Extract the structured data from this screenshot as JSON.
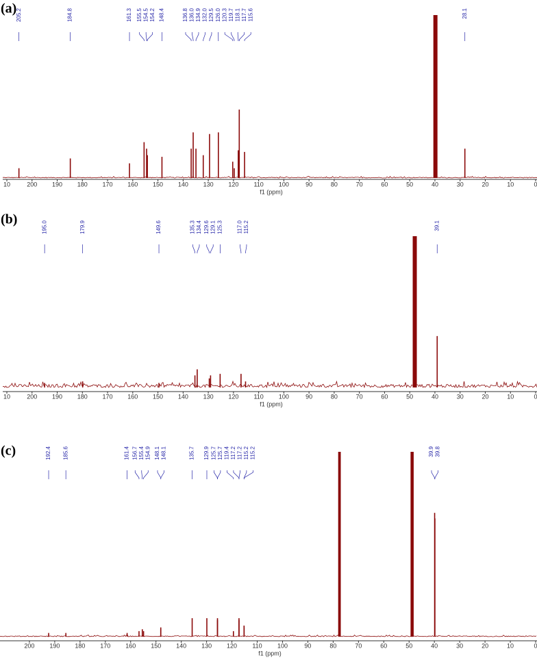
{
  "chart_data": [
    {
      "type": "spectrum",
      "panel_label": "(a)",
      "x_label": "f1 (ppm)",
      "color": "#8b0a0a",
      "label_color": "#2626a8",
      "xlim": [
        210,
        0
      ],
      "ylim": [
        0,
        100
      ],
      "xticks": [
        {
          "value": 210,
          "label": "10"
        },
        200,
        190,
        180,
        170,
        160,
        150,
        140,
        130,
        120,
        110,
        100,
        90,
        80,
        70,
        60,
        50,
        40,
        30,
        20,
        10,
        0
      ],
      "peaks": {
        "x": [
          205.2,
          184.8,
          161.3,
          155.5,
          154.5,
          154.2,
          148.4,
          136.8,
          136.0,
          134.9,
          132.0,
          129.5,
          126.0,
          120.3,
          119.7,
          118.1,
          117.7,
          115.6,
          28.1,
          40.4,
          40.2,
          40.0,
          39.8,
          39.6,
          39.4,
          39.2
        ],
        "heights": [
          6,
          12,
          9,
          22,
          18,
          14,
          13,
          18,
          28,
          18,
          14,
          27,
          28,
          10,
          6,
          17,
          42,
          16,
          18,
          100,
          100,
          100,
          100,
          100,
          100,
          100
        ],
        "x_labels": [
          "205.2",
          "184.8",
          "161.3",
          "155.5",
          "154.5",
          "154.2",
          "148.4",
          "136.8",
          "136.0",
          "134.9",
          "132.0",
          "129.5",
          "126.0",
          "120.3",
          "119.7",
          "118.1",
          "117.7",
          "115.6",
          "28.1",
          null,
          null,
          null,
          null,
          null,
          null,
          null
        ]
      }
    },
    {
      "type": "spectrum",
      "panel_label": "(b)",
      "x_label": "f1 (ppm)",
      "color": "#8b0a0a",
      "label_color": "#2626a8",
      "xlim": [
        210,
        0
      ],
      "ylim": [
        0,
        100
      ],
      "xticks": [
        {
          "value": 210,
          "label": "10"
        },
        200,
        190,
        180,
        170,
        160,
        150,
        140,
        130,
        120,
        110,
        100,
        90,
        80,
        70,
        60,
        50,
        40,
        30,
        20,
        10,
        0
      ],
      "peaks": {
        "x": [
          195.0,
          179.9,
          149.6,
          135.3,
          134.4,
          129.6,
          129.1,
          125.3,
          117.0,
          115.2,
          39.1,
          48.6,
          48.4,
          48.2,
          48.0,
          47.8,
          47.6,
          47.4
        ],
        "heights": [
          3,
          4,
          3,
          8,
          12,
          6,
          8,
          9,
          9,
          4,
          34,
          100,
          100,
          100,
          100,
          100,
          100,
          100
        ],
        "x_labels": [
          "195.0",
          "179.9",
          "149.6",
          "135.3",
          "134.4",
          "129.6",
          "129.1",
          "125.3",
          "117.0",
          "115.2",
          "39.1",
          null,
          null,
          null,
          null,
          null,
          null,
          null
        ]
      }
    },
    {
      "type": "spectrum",
      "panel_label": "(c)",
      "x_label": "f1 (ppm)",
      "color": "#8b0a0a",
      "label_color": "#2626a8",
      "xlim": [
        210,
        0
      ],
      "ylim": [
        0,
        100
      ],
      "xticks": [
        200,
        190,
        180,
        170,
        160,
        150,
        140,
        130,
        120,
        110,
        100,
        90,
        80,
        70,
        60,
        50,
        40,
        30,
        20,
        10,
        0
      ],
      "peaks": {
        "x": [
          192.4,
          185.6,
          161.4,
          156.7,
          155.4,
          154.9,
          148.1,
          148.1,
          135.7,
          129.9,
          125.7,
          125.7,
          119.4,
          117.2,
          117.2,
          115.2,
          115.2,
          39.9,
          39.8,
          77.8,
          77.6,
          77.4,
          77.2,
          49.2,
          49.0,
          48.8,
          48.6,
          48.4
        ],
        "heights": [
          2,
          2,
          2,
          3,
          4,
          3,
          5,
          4,
          10,
          10,
          10,
          9,
          3,
          10,
          9,
          6,
          5,
          67,
          64,
          100,
          100,
          100,
          100,
          100,
          100,
          100,
          100,
          100
        ],
        "x_labels": [
          "192.4",
          "185.6",
          "161.4",
          "156.7",
          "155.4",
          "154.9",
          "148.1",
          "148.1",
          "135.7",
          "129.9",
          "125.7",
          "125.7",
          "119.4",
          "117.2",
          "117.2",
          "115.2",
          "115.2",
          "39.9",
          "39.8",
          null,
          null,
          null,
          null,
          null,
          null,
          null,
          null,
          null
        ]
      }
    }
  ]
}
